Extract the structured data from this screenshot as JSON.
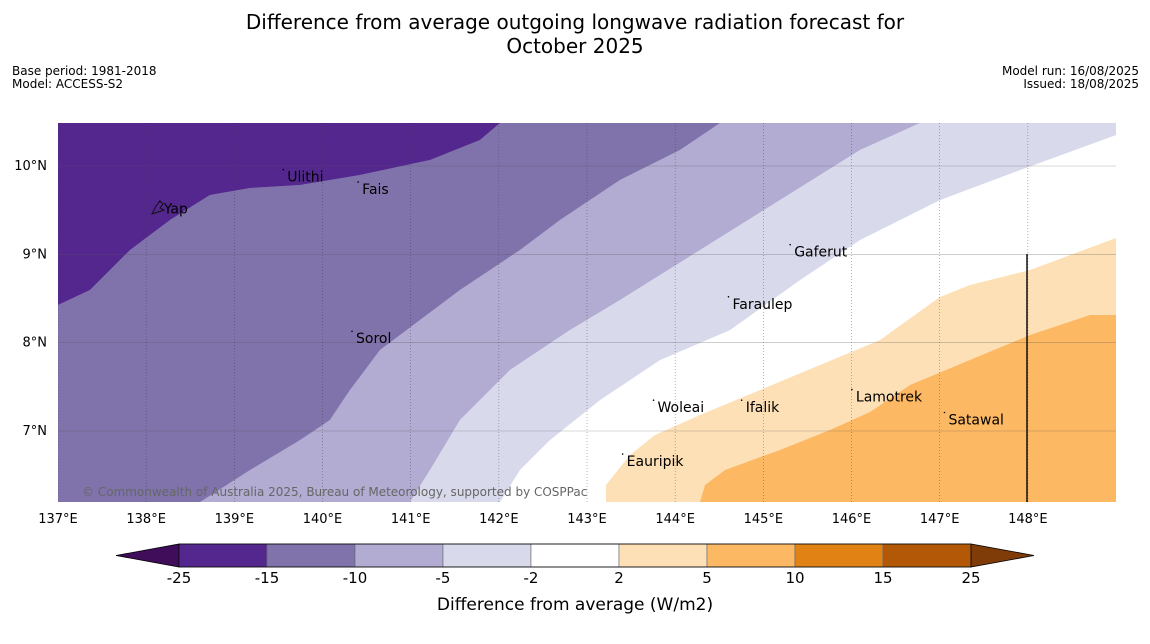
{
  "title": {
    "line1": "Difference from average outgoing longwave radiation forecast for",
    "line2": "October 2025"
  },
  "meta": {
    "base_period": "Base period: 1981-2018",
    "model": "Model: ACCESS-S2",
    "model_run": "Model run: 16/08/2025",
    "issued": "Issued: 18/08/2025"
  },
  "map": {
    "extent": {
      "lon": [
        137,
        149
      ],
      "lat": [
        6.2,
        10.5
      ]
    },
    "lon_ticks": [
      {
        "value": 137,
        "label": "137°E"
      },
      {
        "value": 138,
        "label": "138°E"
      },
      {
        "value": 139,
        "label": "139°E"
      },
      {
        "value": 140,
        "label": "140°E"
      },
      {
        "value": 141,
        "label": "141°E"
      },
      {
        "value": 142,
        "label": "142°E"
      },
      {
        "value": 143,
        "label": "143°E"
      },
      {
        "value": 144,
        "label": "144°E"
      },
      {
        "value": 145,
        "label": "145°E"
      },
      {
        "value": 146,
        "label": "146°E"
      },
      {
        "value": 147,
        "label": "147°E"
      },
      {
        "value": 148,
        "label": "148°E"
      }
    ],
    "lat_ticks": [
      {
        "value": 10,
        "label": "10°N"
      },
      {
        "value": 9,
        "label": "9°N"
      },
      {
        "value": 8,
        "label": "8°N"
      },
      {
        "value": 7,
        "label": "7°N"
      }
    ],
    "places": [
      {
        "name": "Yap",
        "lon": 138.2,
        "lat": 9.52
      },
      {
        "name": "Ulithi",
        "lon": 139.6,
        "lat": 9.88
      },
      {
        "name": "Fais",
        "lon": 140.45,
        "lat": 9.74
      },
      {
        "name": "Sorol",
        "lon": 140.38,
        "lat": 8.05
      },
      {
        "name": "Gaferut",
        "lon": 145.35,
        "lat": 9.03
      },
      {
        "name": "Faraulep",
        "lon": 144.65,
        "lat": 8.44
      },
      {
        "name": "Woleai",
        "lon": 143.8,
        "lat": 7.27
      },
      {
        "name": "Ifalik",
        "lon": 144.8,
        "lat": 7.27
      },
      {
        "name": "Lamotrek",
        "lon": 146.05,
        "lat": 7.39
      },
      {
        "name": "Satawal",
        "lon": 147.1,
        "lat": 7.13
      },
      {
        "name": "Eauripik",
        "lon": 143.45,
        "lat": 6.66
      }
    ],
    "copyright": "© Commonwealth of Australia 2025, Bureau of Meteorology, supported by COSPPac"
  },
  "colorbar": {
    "label": "Difference from average (W/m2)",
    "tick_labels": [
      "-25",
      "-15",
      "-10",
      "-5",
      "-2",
      "2",
      "5",
      "10",
      "15",
      "25"
    ],
    "low_extend_color": "#3f0d5a",
    "high_extend_color": "#7f3b08",
    "colors": [
      "#54278f",
      "#8073ac",
      "#b2abd2",
      "#d8daeb",
      "#ffffff",
      "#fee0b6",
      "#fdb863",
      "#e08214",
      "#b35806"
    ]
  }
}
